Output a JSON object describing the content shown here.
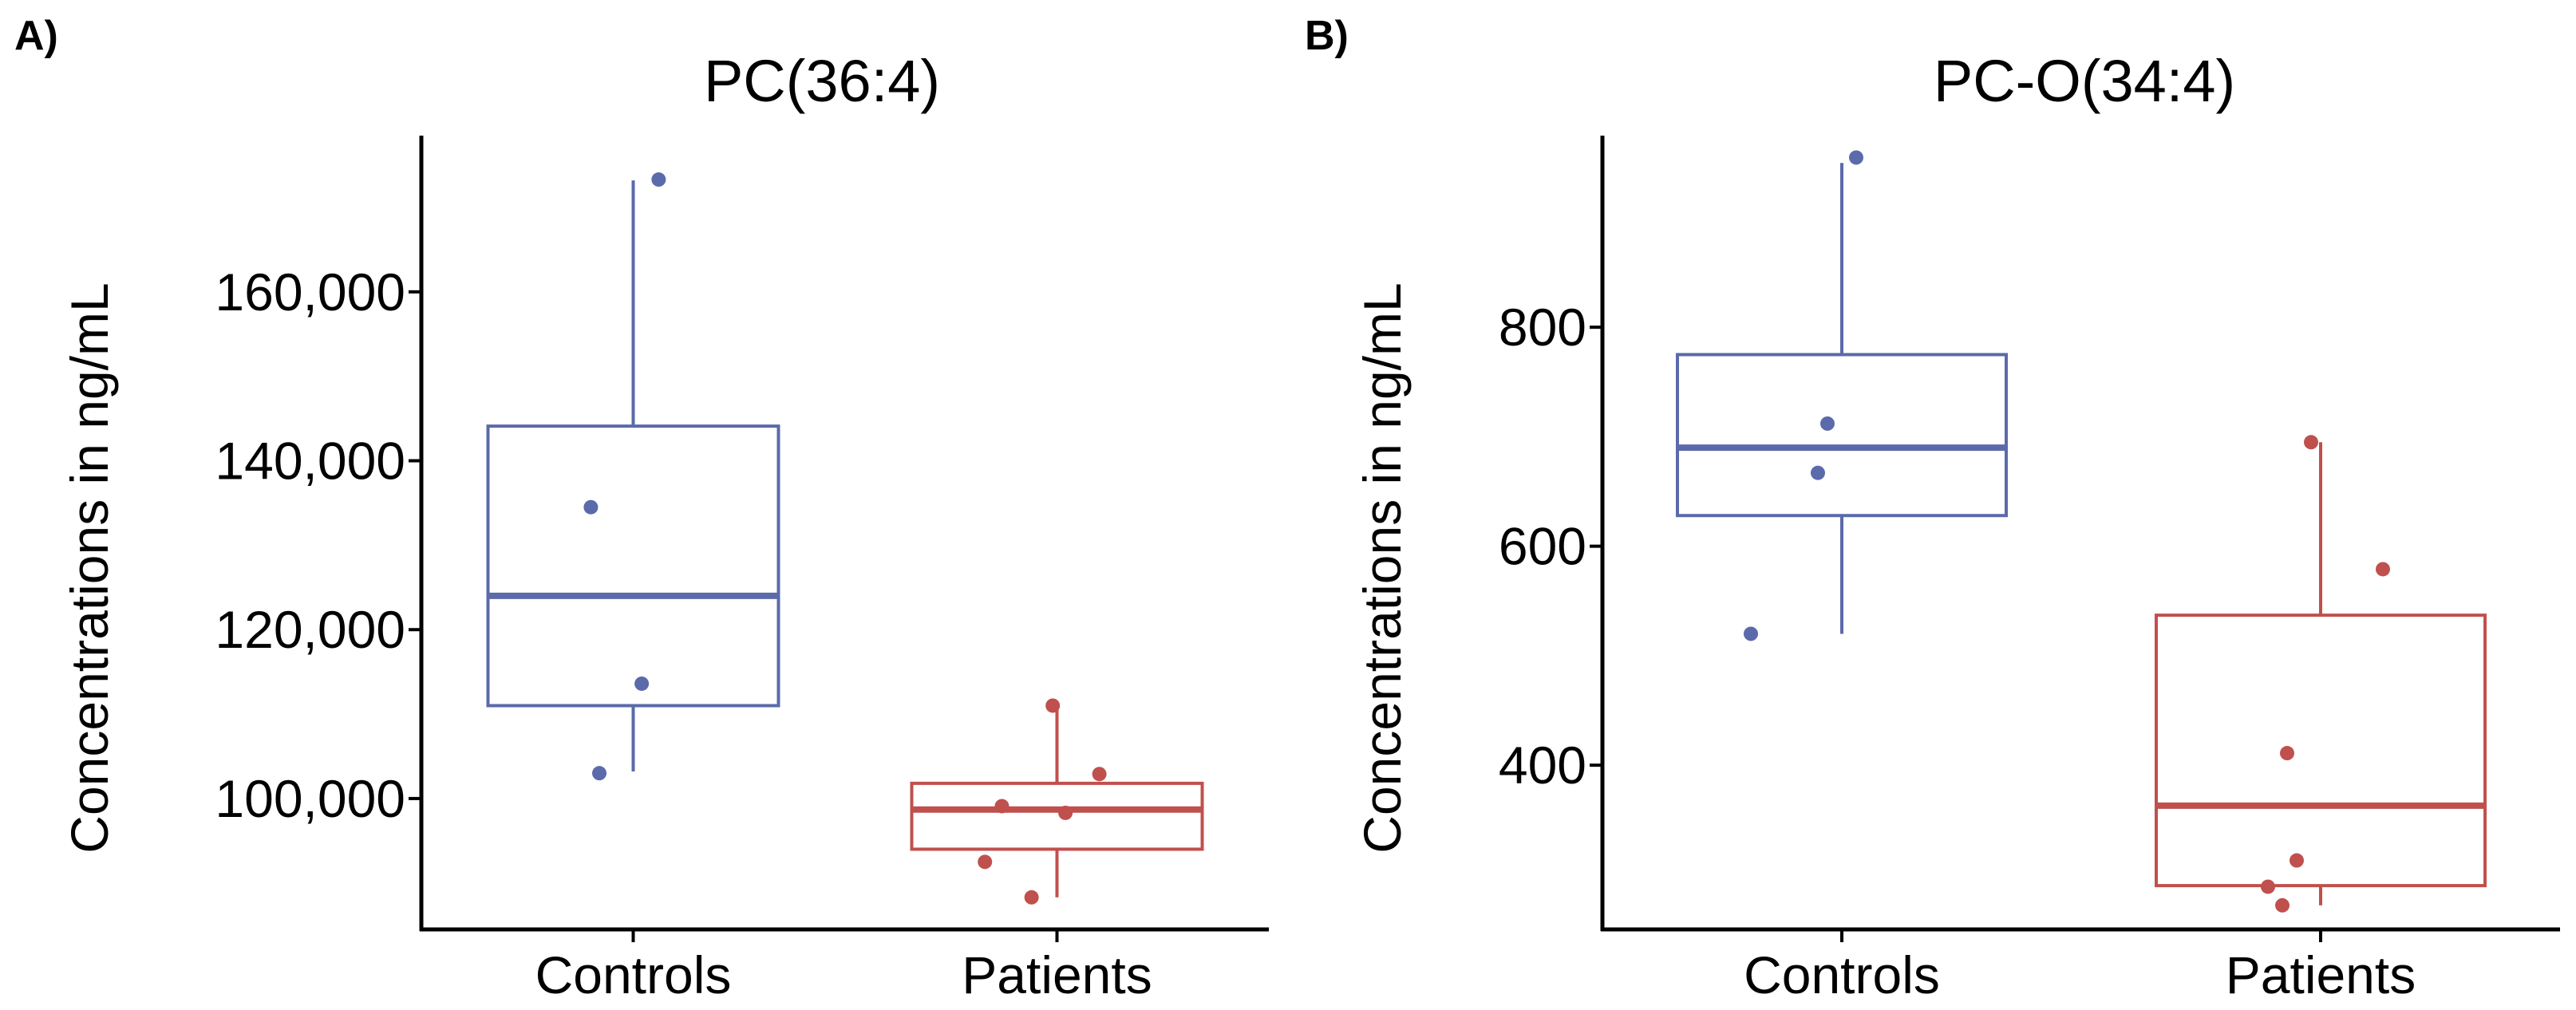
{
  "chart_data": [
    {
      "panel_label": "A)",
      "type": "box",
      "title": "PC(36:4)",
      "xlabel": "",
      "ylabel": "Concentrations in ng/mL",
      "categories": [
        "Controls",
        "Patients"
      ],
      "yticks": [
        100000,
        120000,
        140000,
        160000
      ],
      "ytick_labels": [
        "100,000",
        "120,000",
        "140,000",
        "160,000"
      ],
      "ylim": [
        84500,
        178500
      ],
      "grid": false,
      "series": [
        {
          "name": "Controls",
          "color": "#5B6AAA",
          "box": {
            "min": 103200,
            "q1": 111000,
            "median": 124000,
            "q3": 144100,
            "max": 173200
          },
          "points": [
            {
              "x_offset": 0.06,
              "y": 173300
            },
            {
              "x_offset": -0.1,
              "y": 134500
            },
            {
              "x_offset": 0.02,
              "y": 113600
            },
            {
              "x_offset": -0.08,
              "y": 103000
            }
          ]
        },
        {
          "name": "Patients",
          "color": "#C0504D",
          "box": {
            "min": 88300,
            "q1": 94000,
            "median": 98700,
            "q3": 101800,
            "max": 111000
          },
          "points": [
            {
              "x_offset": -0.01,
              "y": 111000
            },
            {
              "x_offset": 0.1,
              "y": 102900
            },
            {
              "x_offset": -0.13,
              "y": 99100
            },
            {
              "x_offset": 0.02,
              "y": 98300
            },
            {
              "x_offset": -0.17,
              "y": 92500
            },
            {
              "x_offset": -0.06,
              "y": 88300
            }
          ]
        }
      ]
    },
    {
      "panel_label": "B)",
      "type": "box",
      "title": "PC-O(34:4)",
      "xlabel": "",
      "ylabel": "Concentrations in ng/mL",
      "categories": [
        "Controls",
        "Patients"
      ],
      "yticks": [
        400,
        600,
        800
      ],
      "ytick_labels": [
        "400",
        "600",
        "800"
      ],
      "ylim": [
        250,
        975
      ],
      "grid": false,
      "series": [
        {
          "name": "Controls",
          "color": "#5B6AAA",
          "box": {
            "min": 520,
            "q1": 628,
            "median": 690,
            "q3": 775,
            "max": 950
          },
          "points": [
            {
              "x_offset": 0.03,
              "y": 955
            },
            {
              "x_offset": -0.03,
              "y": 712
            },
            {
              "x_offset": -0.05,
              "y": 667
            },
            {
              "x_offset": -0.19,
              "y": 520
            }
          ]
        },
        {
          "name": "Patients",
          "color": "#C0504D",
          "box": {
            "min": 272,
            "q1": 290,
            "median": 363,
            "q3": 537,
            "max": 695
          },
          "points": [
            {
              "x_offset": -0.02,
              "y": 695
            },
            {
              "x_offset": 0.13,
              "y": 579
            },
            {
              "x_offset": -0.07,
              "y": 411
            },
            {
              "x_offset": -0.05,
              "y": 313
            },
            {
              "x_offset": -0.11,
              "y": 289
            },
            {
              "x_offset": -0.08,
              "y": 272
            }
          ]
        }
      ]
    }
  ]
}
